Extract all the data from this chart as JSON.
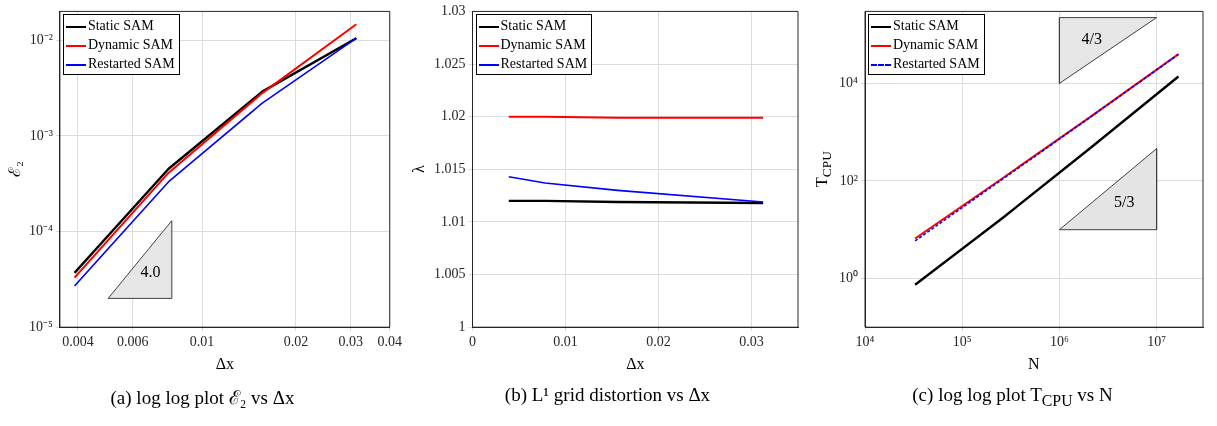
{
  "chart_data": [
    {
      "type": "line",
      "log": "xy",
      "grid": true,
      "legend": "top left",
      "xlabel": "Δx",
      "ylabel": "ℰ₂",
      "xlim": [
        0.0035,
        0.04
      ],
      "xticks": [
        0.004,
        0.006,
        0.01,
        0.02,
        0.03,
        0.04
      ],
      "ylim": [
        1e-05,
        0.02
      ],
      "yticks": [
        {
          "value": 1e-05,
          "label": "10⁻⁵"
        },
        {
          "value": 0.0001,
          "label": "10⁻⁴"
        },
        {
          "value": 0.001,
          "label": "10⁻³"
        },
        {
          "value": 0.01,
          "label": "10⁻²"
        }
      ],
      "x": [
        0.0039,
        0.0078,
        0.0156,
        0.03125
      ],
      "series": [
        {
          "name": "Static SAM",
          "color": "#000000",
          "values": [
            3.7e-05,
            0.00045,
            0.0029,
            0.0105
          ]
        },
        {
          "name": "Dynamic SAM",
          "color": "#ff0000",
          "values": [
            3.3e-05,
            0.00041,
            0.0028,
            0.0147
          ]
        },
        {
          "name": "Restarted SAM",
          "color": "#0000ff",
          "values": [
            2.7e-05,
            0.00033,
            0.0022,
            0.0105
          ]
        },
        {
          "type": "area",
          "color": "#e6e6e6",
          "x": [
            0.005,
            0.008,
            0.008,
            0.005
          ],
          "values": [
            2e-05,
            2e-05,
            0.00013,
            2e-05
          ]
        }
      ],
      "annotations": [
        "4.0",
        "(a) log log plot ℰ₂ vs Δx"
      ]
    },
    {
      "type": "line",
      "grid": true,
      "legend": "top left",
      "xlabel": "Δx",
      "ylabel": "λ",
      "xlim": [
        0,
        0.035
      ],
      "xticks": [
        0,
        0.01,
        0.02,
        0.03
      ],
      "ylim": [
        1,
        1.03
      ],
      "yticks": [
        1,
        1.005,
        1.01,
        1.015,
        1.02,
        1.025,
        1.03
      ],
      "x": [
        0.0039,
        0.0078,
        0.0156,
        0.03125
      ],
      "series": [
        {
          "name": "Static SAM",
          "color": "#000000",
          "values": [
            1.012,
            1.012,
            1.0119,
            1.0118
          ]
        },
        {
          "name": "Dynamic SAM",
          "color": "#ff0000",
          "values": [
            1.02,
            1.02,
            1.0199,
            1.0199
          ]
        },
        {
          "name": "Restarted SAM",
          "color": "#0000ff",
          "values": [
            1.0143,
            1.0137,
            1.013,
            1.0119
          ]
        }
      ],
      "annotations": [
        "(b) L¹ grid distortion vs Δx"
      ]
    },
    {
      "type": "line",
      "log": "xy",
      "grid": true,
      "legend": "top left",
      "xlabel": "N",
      "ylabel": "T$_{CPU}$",
      "xlim": [
        10000,
        30000000
      ],
      "xticks": [
        {
          "value": 10000,
          "label": "10⁴"
        },
        {
          "value": 100000,
          "label": "10⁵"
        },
        {
          "value": 1000000,
          "label": "10⁶"
        },
        {
          "value": 10000000,
          "label": "10⁷"
        }
      ],
      "ylim": [
        0.1,
        300000
      ],
      "yticks": [
        {
          "value": 1,
          "label": "10⁰"
        },
        {
          "value": 100,
          "label": "10²"
        },
        {
          "value": 10000,
          "label": "10⁴"
        }
      ],
      "x": [
        32768,
        262144,
        2097152,
        16777216
      ],
      "series": [
        {
          "name": "Static SAM",
          "color": "#000000",
          "values": [
            0.74,
            17.6,
            480,
            13900
          ]
        },
        {
          "name": "Dynamic SAM",
          "color": "#ff0000",
          "values": [
            6.6,
            115,
            2090,
            40000
          ]
        },
        {
          "name": "Restarted SAM",
          "color": "#0000ff",
          "line_style": "dashed",
          "values": [
            5.9,
            110,
            2050,
            39500
          ]
        },
        {
          "type": "area",
          "color": "#e6e6e6",
          "x": [
            1000000,
            10000000,
            1000000,
            1000000
          ],
          "values": [
            10000,
            224000,
            224000,
            10000
          ]
        },
        {
          "type": "area",
          "color": "#e4e4e4",
          "x": [
            1000000,
            10000000,
            10000000,
            1000000
          ],
          "values": [
            10,
            460,
            10,
            10
          ]
        }
      ],
      "annotations": [
        "4/3",
        "5/3",
        "(c) log log plot T$_{CPU}$ vs N"
      ]
    }
  ]
}
